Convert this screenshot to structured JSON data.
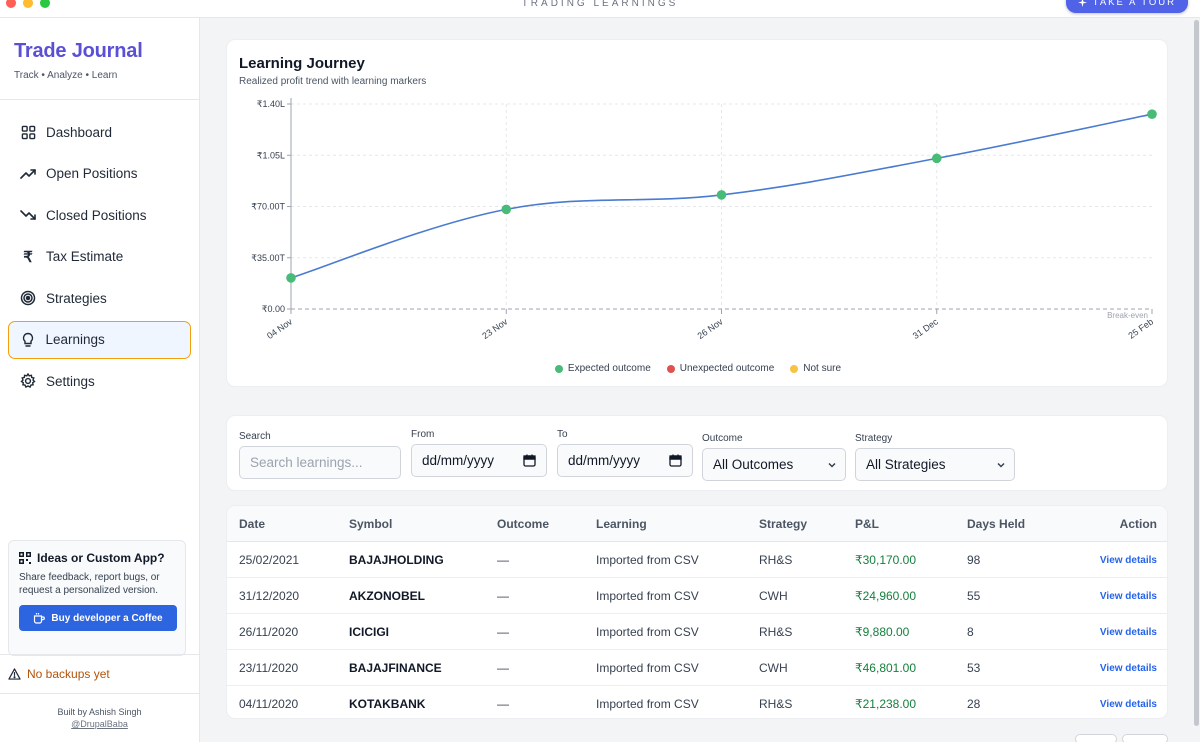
{
  "window": {
    "title": "TRADING LEARNINGS",
    "tour_label": "TAKE A TOUR"
  },
  "brand": {
    "title": "Trade Journal",
    "subtitle": "Track • Analyze • Learn"
  },
  "nav": [
    {
      "label": "Dashboard",
      "icon": "grid-icon"
    },
    {
      "label": "Open Positions",
      "icon": "trending-up-icon"
    },
    {
      "label": "Closed Positions",
      "icon": "trending-down-icon"
    },
    {
      "label": "Tax Estimate",
      "icon": "rupee-icon"
    },
    {
      "label": "Strategies",
      "icon": "target-icon"
    },
    {
      "label": "Learnings",
      "icon": "lightbulb-icon",
      "active": true
    },
    {
      "label": "Settings",
      "icon": "gear-icon"
    }
  ],
  "ideas": {
    "title": "Ideas or Custom App?",
    "text": "Share feedback, report bugs, or request a personalized version.",
    "button": "Buy developer a Coffee"
  },
  "backup": {
    "text": "No backups yet"
  },
  "footer": {
    "built_by": "Built by Ashish Singh",
    "handle": "@DrupalBaba"
  },
  "chart_card": {
    "title": "Learning Journey",
    "subtitle": "Realized profit trend with learning markers"
  },
  "chart_data": {
    "type": "line",
    "title": "Learning Journey",
    "subtitle": "Realized profit trend with learning markers",
    "x": [
      "04 Nov",
      "23 Nov",
      "26 Nov",
      "31 Dec",
      "25 Feb"
    ],
    "series": [
      {
        "name": "Realized profit",
        "values": [
          21238,
          68039,
          77919,
          102879,
          133049
        ]
      }
    ],
    "ylim": [
      0,
      140000
    ],
    "yticks": [
      0,
      35000,
      70000,
      105000,
      140000
    ],
    "ytick_labels": [
      "₹0.00",
      "₹35.00T",
      "₹70.00T",
      "₹1.05L",
      "₹1.40L"
    ],
    "reference_line": {
      "value": 0,
      "label": "Break-even"
    },
    "legend": [
      {
        "label": "Expected outcome",
        "color": "#48bb78"
      },
      {
        "label": "Unexpected outcome",
        "color": "#e05252"
      },
      {
        "label": "Not sure",
        "color": "#f6c343"
      }
    ],
    "line_color": "#4a7bd0",
    "marker_color": "#48bb78"
  },
  "filters": {
    "search_label": "Search",
    "search_placeholder": "Search learnings...",
    "from_label": "From",
    "from_value": "dd/mm/yyyy",
    "to_label": "To",
    "to_value": "dd/mm/yyyy",
    "outcome_label": "Outcome",
    "outcome_value": "All Outcomes",
    "strategy_label": "Strategy",
    "strategy_value": "All Strategies"
  },
  "table": {
    "headers": {
      "date": "Date",
      "symbol": "Symbol",
      "outcome": "Outcome",
      "learning": "Learning",
      "strategy": "Strategy",
      "pnl": "P&L",
      "days": "Days Held",
      "action": "Action"
    },
    "rows": [
      {
        "date": "25/02/2021",
        "symbol": "BAJAJHOLDING",
        "outcome": "—",
        "learning": "Imported from CSV",
        "strategy": "RH&S",
        "pnl": "₹30,170.00",
        "days": "98",
        "action": "View details"
      },
      {
        "date": "31/12/2020",
        "symbol": "AKZONOBEL",
        "outcome": "—",
        "learning": "Imported from CSV",
        "strategy": "CWH",
        "pnl": "₹24,960.00",
        "days": "55",
        "action": "View details"
      },
      {
        "date": "26/11/2020",
        "symbol": "ICICIGI",
        "outcome": "—",
        "learning": "Imported from CSV",
        "strategy": "RH&S",
        "pnl": "₹9,880.00",
        "days": "8",
        "action": "View details"
      },
      {
        "date": "23/11/2020",
        "symbol": "BAJAJFINANCE",
        "outcome": "—",
        "learning": "Imported from CSV",
        "strategy": "CWH",
        "pnl": "₹46,801.00",
        "days": "53",
        "action": "View details"
      },
      {
        "date": "04/11/2020",
        "symbol": "KOTAKBANK",
        "outcome": "—",
        "learning": "Imported from CSV",
        "strategy": "RH&S",
        "pnl": "₹21,238.00",
        "days": "28",
        "action": "View details"
      }
    ]
  }
}
